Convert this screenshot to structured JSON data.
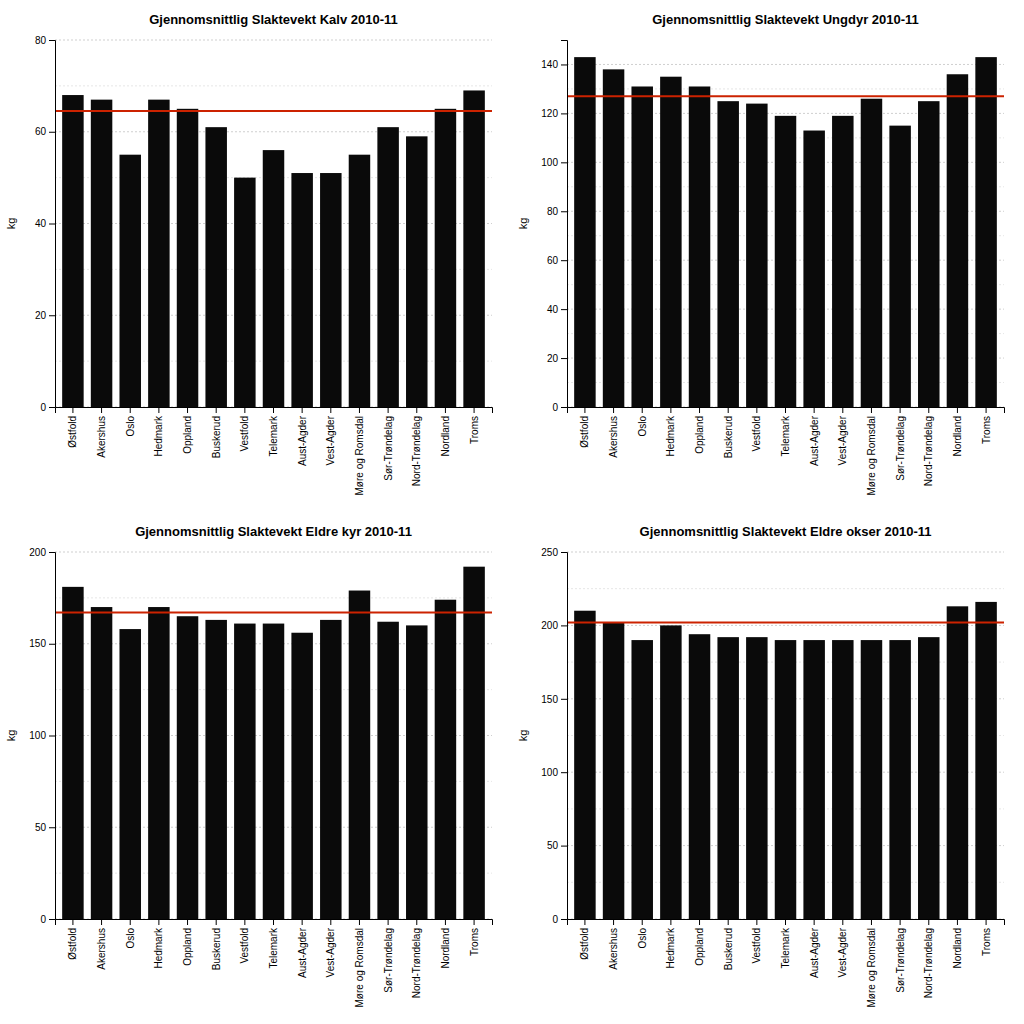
{
  "chart_data": [
    {
      "type": "bar",
      "title": "Gjennomsnittlig Slaktevekt Kalv 2010-11",
      "categories": [
        "Østfold",
        "Akershus",
        "Oslo",
        "Hedmark",
        "Oppland",
        "Buskerud",
        "Vestfold",
        "Telemark",
        "Aust-Agder",
        "Vest-Agder",
        "Møre og Romsdal",
        "Sør-Trøndelag",
        "Nord-Trøndelag",
        "Nordland",
        "Troms"
      ],
      "values": [
        68,
        67,
        55,
        67,
        65,
        61,
        50,
        56,
        51,
        51,
        55,
        61,
        59,
        65,
        69
      ],
      "color": "#0a0a0a",
      "ylabel": "kg",
      "ylim": [
        0,
        80
      ],
      "yticks": [
        0,
        20,
        40,
        60,
        80
      ],
      "minor_yticks": [
        10,
        30,
        50,
        70
      ],
      "reference_line": {
        "value": 64.5,
        "color": "#cc2200"
      },
      "grid": true
    },
    {
      "type": "bar",
      "title": "Gjennomsnittlig Slaktevekt Ungdyr 2010-11",
      "categories": [
        "Østfold",
        "Akershus",
        "Oslo",
        "Hedmark",
        "Oppland",
        "Buskerud",
        "Vestfold",
        "Telemark",
        "Aust-Agder",
        "Vest-Agder",
        "Møre og Romsdal",
        "Sør-Trøndelag",
        "Nord-Trøndelag",
        "Nordland",
        "Troms"
      ],
      "values": [
        143,
        138,
        131,
        135,
        131,
        125,
        124,
        119,
        113,
        119,
        126,
        115,
        125,
        136,
        143
      ],
      "color": "#0a0a0a",
      "ylabel": "kg",
      "ylim": [
        0,
        150
      ],
      "yticks": [
        0,
        20,
        40,
        60,
        80,
        100,
        120,
        140
      ],
      "minor_yticks": [
        10,
        30,
        50,
        70,
        90,
        110,
        130
      ],
      "reference_line": {
        "value": 127,
        "color": "#cc2200"
      },
      "grid": true
    },
    {
      "type": "bar",
      "title": "Gjennomsnittlig Slaktevekt Eldre kyr 2010-11",
      "categories": [
        "Østfold",
        "Akershus",
        "Oslo",
        "Hedmark",
        "Oppland",
        "Buskerud",
        "Vestfold",
        "Telemark",
        "Aust-Agder",
        "Vest-Agder",
        "Møre og Romsdal",
        "Sør-Trøndelag",
        "Nord-Trøndelag",
        "Nordland",
        "Troms"
      ],
      "values": [
        181,
        170,
        158,
        170,
        165,
        163,
        161,
        161,
        156,
        163,
        179,
        162,
        160,
        174,
        192
      ],
      "color": "#0a0a0a",
      "ylabel": "kg",
      "ylim": [
        0,
        200
      ],
      "yticks": [
        0,
        50,
        100,
        150,
        200
      ],
      "minor_yticks": [
        25,
        75,
        125,
        175
      ],
      "reference_line": {
        "value": 167,
        "color": "#cc2200"
      },
      "grid": true
    },
    {
      "type": "bar",
      "title": "Gjennomsnittlig Slaktevekt Eldre okser 2010-11",
      "categories": [
        "Østfold",
        "Akershus",
        "Oslo",
        "Hedmark",
        "Oppland",
        "Buskerud",
        "Vestfold",
        "Telemark",
        "Aust-Agder",
        "Vest-Agder",
        "Møre og Romsdal",
        "Sør-Trøndelag",
        "Nord-Trøndelag",
        "Nordland",
        "Troms"
      ],
      "values": [
        210,
        202,
        190,
        200,
        194,
        192,
        192,
        190,
        190,
        190,
        190,
        190,
        192,
        213,
        216
      ],
      "color": "#0a0a0a",
      "ylabel": "kg",
      "ylim": [
        0,
        250
      ],
      "yticks": [
        0,
        50,
        100,
        150,
        200,
        250
      ],
      "minor_yticks": [
        25,
        75,
        125,
        175,
        225
      ],
      "reference_line": {
        "value": 202,
        "color": "#cc2200"
      },
      "grid": true
    }
  ]
}
